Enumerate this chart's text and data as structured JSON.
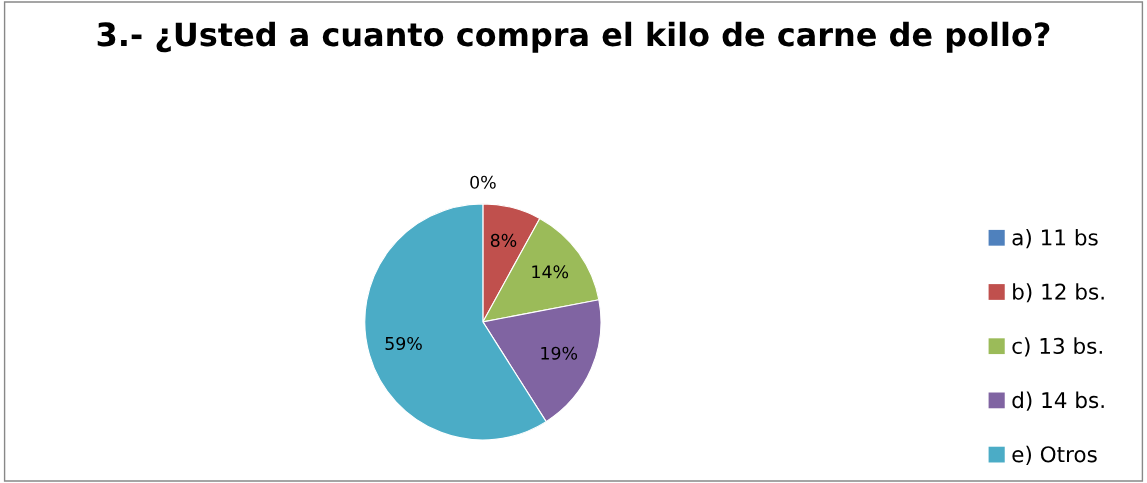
{
  "chart_data": {
    "type": "pie",
    "title": "3.- ¿Usted a cuanto compra el kilo de carne de pollo?",
    "categories": [
      "a) 11 bs",
      "b) 12 bs.",
      "c) 13 bs.",
      "d) 14 bs.",
      "e) Otros"
    ],
    "values": [
      0,
      8,
      14,
      19,
      59
    ],
    "colors": [
      "#4f81bd",
      "#c0504d",
      "#9bbb59",
      "#8064a2",
      "#4bacc6"
    ],
    "value_labels": [
      "0%",
      "8%",
      "14%",
      "19%",
      "59%"
    ],
    "legend": "right"
  }
}
